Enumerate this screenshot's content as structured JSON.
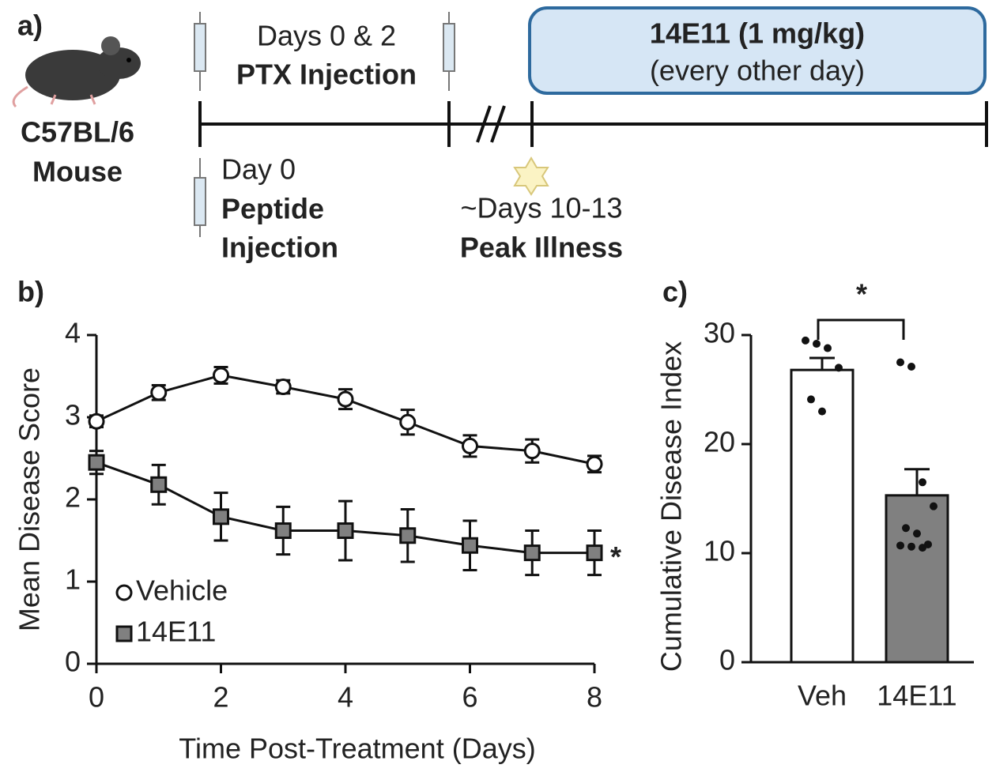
{
  "panel_a": {
    "label": "a)",
    "mouse_strain": "C57BL/6",
    "mouse_word": "Mouse",
    "ptx_days": "Days 0 & 2",
    "ptx_name": "PTX Injection",
    "treatment_name": "14E11 (1 mg/kg)",
    "treatment_schedule": "(every other day)",
    "peptide_day": "Day 0",
    "peptide_name_1": "Peptide",
    "peptide_name_2": "Injection",
    "peak_days": "~Days 10-13",
    "peak_name": "Peak Illness"
  },
  "chart_data": [
    {
      "type": "line",
      "panel_label": "b)",
      "y_label": "Mean Disease Score",
      "x_label": "Time Post-Treatment (Days)",
      "x": [
        0,
        1,
        2,
        3,
        4,
        5,
        6,
        7,
        8
      ],
      "xlim": [
        0,
        8
      ],
      "xticks": [
        0,
        2,
        4,
        6,
        8
      ],
      "ylim": [
        0,
        4
      ],
      "yticks": [
        0,
        1,
        2,
        3,
        4
      ],
      "annotation": "*",
      "series": [
        {
          "name": "Vehicle",
          "color": "#ffffff",
          "marker": "circle",
          "values": [
            2.95,
            3.3,
            3.51,
            3.37,
            3.22,
            2.94,
            2.65,
            2.59,
            2.43
          ],
          "errors": [
            0.07,
            0.09,
            0.1,
            0.08,
            0.12,
            0.15,
            0.13,
            0.14,
            0.1
          ]
        },
        {
          "name": "14E11",
          "color": "#808080",
          "marker": "square",
          "values": [
            2.45,
            2.18,
            1.79,
            1.62,
            1.62,
            1.56,
            1.44,
            1.35,
            1.35
          ],
          "errors": [
            0.14,
            0.24,
            0.29,
            0.29,
            0.36,
            0.32,
            0.3,
            0.27,
            0.27
          ]
        }
      ]
    },
    {
      "type": "bar",
      "panel_label": "c)",
      "y_label": "Cumulative Disease Index",
      "categories": [
        "Veh",
        "14E11"
      ],
      "values": [
        26.8,
        15.3
      ],
      "errors": [
        1.1,
        2.4
      ],
      "colors": [
        "#ffffff",
        "#808080"
      ],
      "points": [
        [
          29.5,
          29.2,
          28.8,
          27.0,
          24.1,
          23.0
        ],
        [
          27.5,
          27.1,
          16.5,
          14.3,
          12.3,
          11.8,
          10.8,
          10.7,
          10.6,
          10.5
        ]
      ],
      "ylim": [
        0,
        30
      ],
      "yticks": [
        0,
        10,
        20,
        30
      ],
      "annotation": "*"
    }
  ]
}
